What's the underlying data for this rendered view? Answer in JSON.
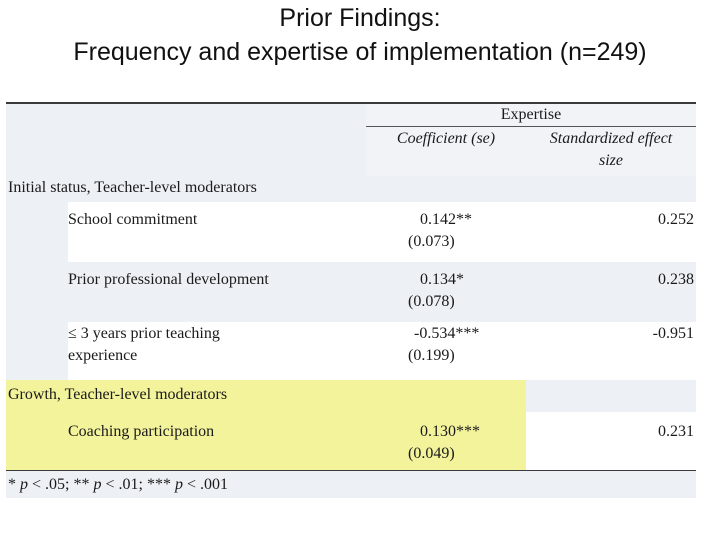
{
  "title": {
    "line1": "Prior Findings:",
    "line2": "Frequency and expertise of implementation (n=249)"
  },
  "table": {
    "group_header": "Expertise",
    "col_coef": "Coefficient (se)",
    "col_std_line1": "Standardized effect",
    "col_std_line2": "size",
    "sections": [
      {
        "label": "Initial status, Teacher-level moderators",
        "rows": [
          {
            "label_line1": "School commitment",
            "label_line2": "",
            "coef": "0.142**",
            "se": "(0.073)",
            "std": "0.252"
          },
          {
            "label_line1": "Prior professional development",
            "label_line2": "",
            "coef": "0.134*",
            "se": "(0.078)",
            "std": "0.238"
          },
          {
            "label_line1": "≤ 3 years prior teaching",
            "label_line2": "experience",
            "coef": "-0.534***",
            "se": "(0.199)",
            "std": "-0.951"
          }
        ]
      },
      {
        "label": "Growth, Teacher-level moderators",
        "rows": [
          {
            "label_line1": "Coaching participation",
            "label_line2": "",
            "coef": "0.130***",
            "se": "(0.049)",
            "std": "0.231"
          }
        ]
      }
    ],
    "footnote": {
      "p1": "p",
      "t1": " < .05; ** ",
      "p2": "p",
      "t2": " < .01; *** ",
      "p3": "p",
      "t3": " < .001",
      "lead": "* "
    }
  }
}
